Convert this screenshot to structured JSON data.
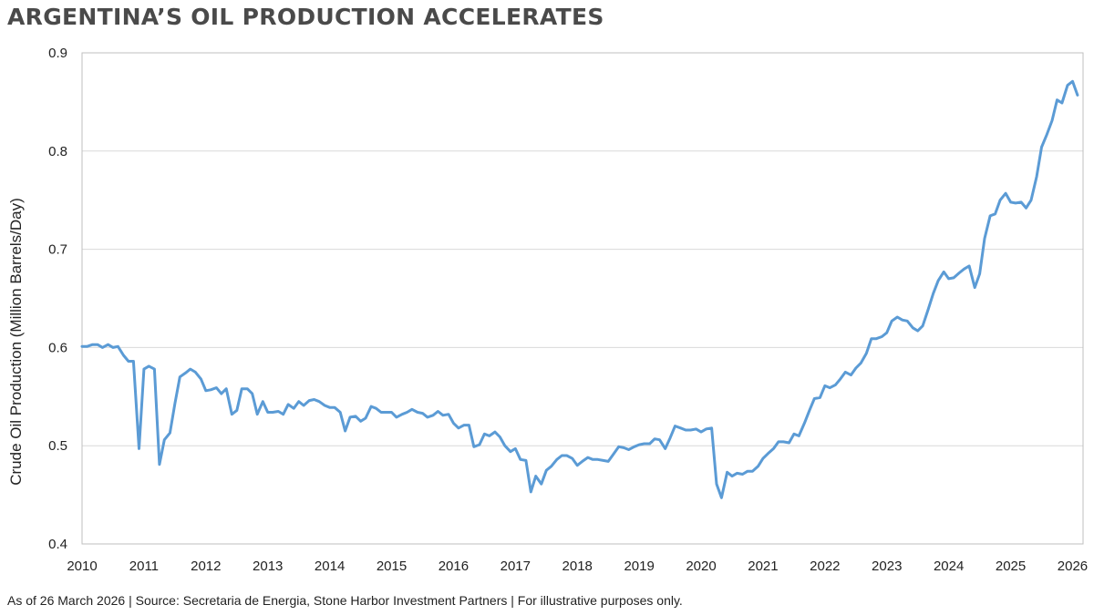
{
  "title": "ARGENTINA’S OIL PRODUCTION ACCELERATES",
  "footnote": "As of 26 March 2026 | Source: Secretaria de Energia, Stone Harbor Investment Partners | For illustrative purposes only.",
  "colors": {
    "line": "#5b9bd5",
    "grid": "#d9d9d9",
    "axis": "#bfbfbf",
    "title": "#4a4a4a"
  },
  "chart_data": {
    "type": "line",
    "title": "ARGENTINA’S OIL PRODUCTION ACCELERATES",
    "xlabel": "",
    "ylabel": "Crude Oil Production (Million Barrels/Day)",
    "xlim": [
      2010,
      2026.17
    ],
    "ylim": [
      0.4,
      0.9
    ],
    "x_ticks": [
      "2010",
      "2011",
      "2012",
      "2013",
      "2014",
      "2015",
      "2016",
      "2017",
      "2018",
      "2019",
      "2020",
      "2021",
      "2022",
      "2023",
      "2024",
      "2025",
      "2026"
    ],
    "y_ticks": [
      "0.4",
      "0.5",
      "0.6",
      "0.7",
      "0.8",
      "0.9"
    ],
    "grid": true,
    "series": [
      {
        "values": [
          [
            2010.0,
            0.601
          ],
          [
            2010.08,
            0.601
          ],
          [
            2010.17,
            0.603
          ],
          [
            2010.25,
            0.603
          ],
          [
            2010.33,
            0.6
          ],
          [
            2010.42,
            0.603
          ],
          [
            2010.5,
            0.6
          ],
          [
            2010.58,
            0.601
          ],
          [
            2010.67,
            0.592
          ],
          [
            2010.75,
            0.586
          ],
          [
            2010.83,
            0.586
          ],
          [
            2010.92,
            0.497
          ],
          [
            2011.0,
            0.578
          ],
          [
            2011.08,
            0.581
          ],
          [
            2011.17,
            0.578
          ],
          [
            2011.25,
            0.481
          ],
          [
            2011.33,
            0.506
          ],
          [
            2011.42,
            0.513
          ],
          [
            2011.5,
            0.543
          ],
          [
            2011.58,
            0.57
          ],
          [
            2011.67,
            0.574
          ],
          [
            2011.75,
            0.578
          ],
          [
            2011.83,
            0.575
          ],
          [
            2011.92,
            0.568
          ],
          [
            2012.0,
            0.556
          ],
          [
            2012.08,
            0.557
          ],
          [
            2012.17,
            0.559
          ],
          [
            2012.25,
            0.553
          ],
          [
            2012.33,
            0.558
          ],
          [
            2012.42,
            0.532
          ],
          [
            2012.5,
            0.536
          ],
          [
            2012.58,
            0.558
          ],
          [
            2012.67,
            0.558
          ],
          [
            2012.75,
            0.553
          ],
          [
            2012.83,
            0.532
          ],
          [
            2012.92,
            0.545
          ],
          [
            2013.0,
            0.534
          ],
          [
            2013.08,
            0.534
          ],
          [
            2013.17,
            0.535
          ],
          [
            2013.25,
            0.532
          ],
          [
            2013.33,
            0.542
          ],
          [
            2013.42,
            0.538
          ],
          [
            2013.5,
            0.545
          ],
          [
            2013.58,
            0.541
          ],
          [
            2013.67,
            0.546
          ],
          [
            2013.75,
            0.547
          ],
          [
            2013.83,
            0.545
          ],
          [
            2013.92,
            0.541
          ],
          [
            2014.0,
            0.539
          ],
          [
            2014.08,
            0.539
          ],
          [
            2014.17,
            0.534
          ],
          [
            2014.25,
            0.515
          ],
          [
            2014.33,
            0.529
          ],
          [
            2014.42,
            0.53
          ],
          [
            2014.5,
            0.525
          ],
          [
            2014.58,
            0.528
          ],
          [
            2014.67,
            0.54
          ],
          [
            2014.75,
            0.538
          ],
          [
            2014.83,
            0.534
          ],
          [
            2014.92,
            0.534
          ],
          [
            2015.0,
            0.534
          ],
          [
            2015.08,
            0.529
          ],
          [
            2015.17,
            0.532
          ],
          [
            2015.25,
            0.534
          ],
          [
            2015.33,
            0.537
          ],
          [
            2015.42,
            0.534
          ],
          [
            2015.5,
            0.533
          ],
          [
            2015.58,
            0.529
          ],
          [
            2015.67,
            0.531
          ],
          [
            2015.75,
            0.535
          ],
          [
            2015.83,
            0.531
          ],
          [
            2015.92,
            0.532
          ],
          [
            2016.0,
            0.523
          ],
          [
            2016.08,
            0.518
          ],
          [
            2016.17,
            0.521
          ],
          [
            2016.25,
            0.521
          ],
          [
            2016.33,
            0.499
          ],
          [
            2016.42,
            0.501
          ],
          [
            2016.5,
            0.512
          ],
          [
            2016.58,
            0.51
          ],
          [
            2016.67,
            0.514
          ],
          [
            2016.75,
            0.509
          ],
          [
            2016.83,
            0.5
          ],
          [
            2016.92,
            0.494
          ],
          [
            2017.0,
            0.497
          ],
          [
            2017.08,
            0.486
          ],
          [
            2017.17,
            0.485
          ],
          [
            2017.25,
            0.453
          ],
          [
            2017.33,
            0.469
          ],
          [
            2017.42,
            0.461
          ],
          [
            2017.5,
            0.475
          ],
          [
            2017.58,
            0.479
          ],
          [
            2017.67,
            0.486
          ],
          [
            2017.75,
            0.49
          ],
          [
            2017.83,
            0.49
          ],
          [
            2017.92,
            0.487
          ],
          [
            2018.0,
            0.48
          ],
          [
            2018.08,
            0.484
          ],
          [
            2018.17,
            0.488
          ],
          [
            2018.25,
            0.486
          ],
          [
            2018.33,
            0.486
          ],
          [
            2018.42,
            0.485
          ],
          [
            2018.5,
            0.484
          ],
          [
            2018.58,
            0.491
          ],
          [
            2018.67,
            0.499
          ],
          [
            2018.75,
            0.498
          ],
          [
            2018.83,
            0.496
          ],
          [
            2018.92,
            0.499
          ],
          [
            2019.0,
            0.501
          ],
          [
            2019.08,
            0.502
          ],
          [
            2019.17,
            0.502
          ],
          [
            2019.25,
            0.507
          ],
          [
            2019.33,
            0.506
          ],
          [
            2019.42,
            0.497
          ],
          [
            2019.5,
            0.508
          ],
          [
            2019.58,
            0.52
          ],
          [
            2019.67,
            0.518
          ],
          [
            2019.75,
            0.516
          ],
          [
            2019.83,
            0.516
          ],
          [
            2019.92,
            0.517
          ],
          [
            2020.0,
            0.514
          ],
          [
            2020.08,
            0.517
          ],
          [
            2020.17,
            0.518
          ],
          [
            2020.25,
            0.461
          ],
          [
            2020.33,
            0.447
          ],
          [
            2020.42,
            0.473
          ],
          [
            2020.5,
            0.469
          ],
          [
            2020.58,
            0.472
          ],
          [
            2020.67,
            0.471
          ],
          [
            2020.75,
            0.474
          ],
          [
            2020.83,
            0.474
          ],
          [
            2020.92,
            0.479
          ],
          [
            2021.0,
            0.487
          ],
          [
            2021.08,
            0.492
          ],
          [
            2021.17,
            0.497
          ],
          [
            2021.25,
            0.504
          ],
          [
            2021.33,
            0.504
          ],
          [
            2021.42,
            0.503
          ],
          [
            2021.5,
            0.512
          ],
          [
            2021.58,
            0.51
          ],
          [
            2021.67,
            0.523
          ],
          [
            2021.75,
            0.536
          ],
          [
            2021.83,
            0.548
          ],
          [
            2021.92,
            0.549
          ],
          [
            2022.0,
            0.561
          ],
          [
            2022.08,
            0.559
          ],
          [
            2022.17,
            0.562
          ],
          [
            2022.25,
            0.568
          ],
          [
            2022.33,
            0.575
          ],
          [
            2022.42,
            0.572
          ],
          [
            2022.5,
            0.579
          ],
          [
            2022.58,
            0.584
          ],
          [
            2022.67,
            0.594
          ],
          [
            2022.75,
            0.609
          ],
          [
            2022.83,
            0.609
          ],
          [
            2022.92,
            0.611
          ],
          [
            2023.0,
            0.615
          ],
          [
            2023.08,
            0.627
          ],
          [
            2023.17,
            0.631
          ],
          [
            2023.25,
            0.628
          ],
          [
            2023.33,
            0.627
          ],
          [
            2023.42,
            0.62
          ],
          [
            2023.5,
            0.617
          ],
          [
            2023.58,
            0.622
          ],
          [
            2023.67,
            0.639
          ],
          [
            2023.75,
            0.655
          ],
          [
            2023.83,
            0.668
          ],
          [
            2023.92,
            0.677
          ],
          [
            2024.0,
            0.67
          ],
          [
            2024.08,
            0.671
          ],
          [
            2024.17,
            0.676
          ],
          [
            2024.25,
            0.68
          ],
          [
            2024.33,
            0.683
          ],
          [
            2024.42,
            0.661
          ],
          [
            2024.5,
            0.675
          ],
          [
            2024.58,
            0.711
          ],
          [
            2024.67,
            0.734
          ],
          [
            2024.75,
            0.736
          ],
          [
            2024.83,
            0.75
          ],
          [
            2024.92,
            0.757
          ],
          [
            2025.0,
            0.748
          ],
          [
            2025.08,
            0.747
          ],
          [
            2025.17,
            0.748
          ],
          [
            2025.25,
            0.742
          ],
          [
            2025.33,
            0.75
          ],
          [
            2025.42,
            0.774
          ],
          [
            2025.5,
            0.804
          ],
          [
            2025.58,
            0.816
          ],
          [
            2025.67,
            0.831
          ],
          [
            2025.75,
            0.852
          ],
          [
            2025.83,
            0.849
          ],
          [
            2025.92,
            0.867
          ],
          [
            2026.0,
            0.871
          ],
          [
            2026.08,
            0.857
          ]
        ]
      }
    ]
  }
}
